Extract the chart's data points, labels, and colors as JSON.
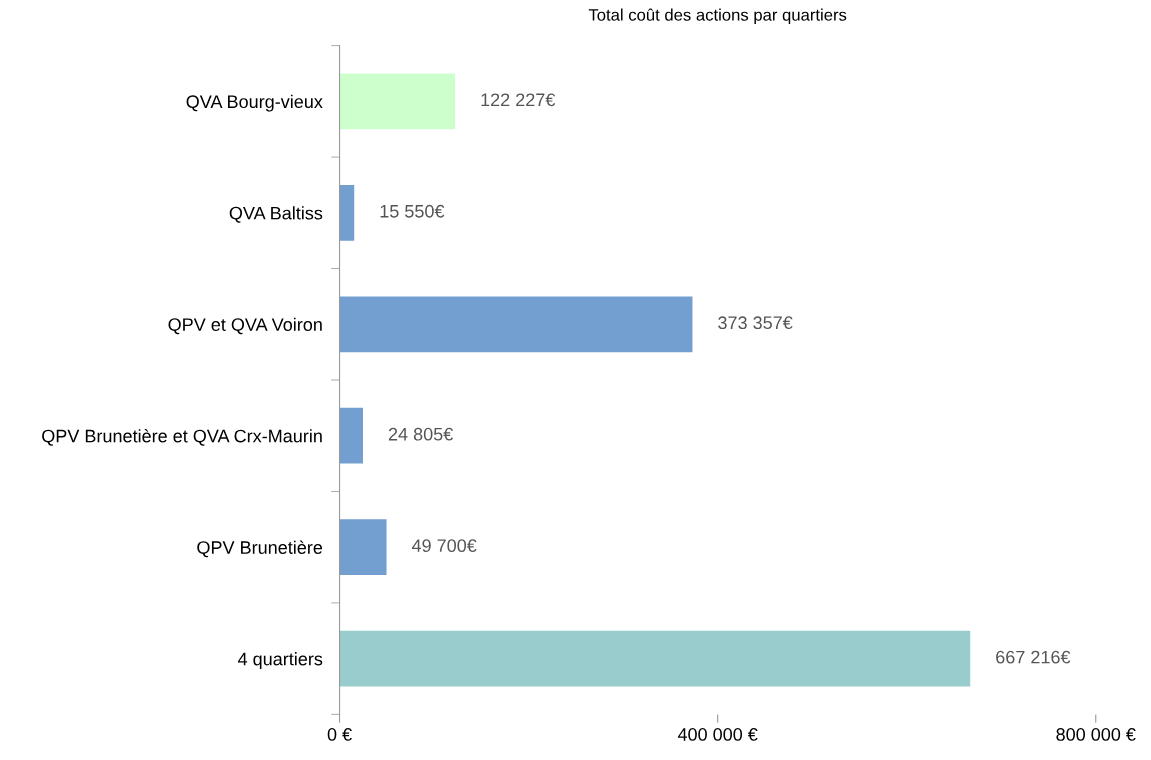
{
  "chart_data": {
    "type": "bar",
    "orientation": "horizontal",
    "title": "Total coût des actions par quartiers",
    "categories": [
      "QVA Bourg-vieux",
      "QVA Baltiss",
      "QPV et QVA Voiron",
      "QPV Brunetière et QVA Crx-Maurin",
      "QPV Brunetière",
      "4 quartiers"
    ],
    "values": [
      122227,
      15550,
      373357,
      24805,
      49700,
      667216
    ],
    "colors": [
      "#ccffcc",
      "#729fcf",
      "#729fcf",
      "#729fcf",
      "#729fcf",
      "#99cccc"
    ],
    "value_labels": [
      "122 227€",
      "15 550€",
      "373 357€",
      "24 805€",
      "49 700€",
      "667 216€"
    ],
    "xlim": [
      0,
      800000
    ],
    "xticks": [
      {
        "value": 0,
        "label": "0 €"
      },
      {
        "value": 400000,
        "label": "400 000 €"
      },
      {
        "value": 800000,
        "label": "800 000 €"
      }
    ],
    "grid": false,
    "legend": false
  }
}
